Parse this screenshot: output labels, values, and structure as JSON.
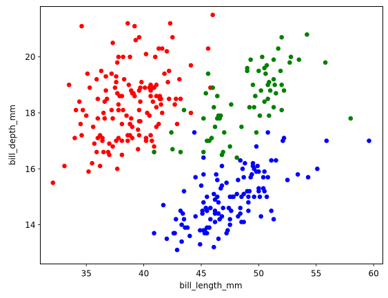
{
  "chart_data": {
    "type": "scatter",
    "title": "",
    "xlabel": "bill_length_mm",
    "ylabel": "bill_depth_mm",
    "xlim": [
      31.0,
      60.8
    ],
    "ylim": [
      12.6,
      21.8
    ],
    "xticks": [
      35,
      40,
      45,
      50,
      55,
      60
    ],
    "yticks": [
      14,
      16,
      18,
      20
    ],
    "grid": false,
    "legend": "none",
    "series": [
      {
        "color": "#ff0000",
        "points": [
          [
            32.1,
            15.5
          ],
          [
            33.1,
            16.1
          ],
          [
            33.5,
            19.0
          ],
          [
            34.0,
            17.1
          ],
          [
            34.1,
            18.1
          ],
          [
            34.4,
            18.4
          ],
          [
            34.5,
            17.6
          ],
          [
            34.6,
            21.1
          ],
          [
            34.6,
            17.2
          ],
          [
            34.7,
            18.1
          ],
          [
            35.0,
            17.9
          ],
          [
            35.1,
            19.4
          ],
          [
            35.2,
            15.9
          ],
          [
            35.3,
            18.9
          ],
          [
            35.5,
            16.2
          ],
          [
            35.6,
            17.5
          ],
          [
            35.7,
            16.9
          ],
          [
            35.9,
            19.2
          ],
          [
            35.9,
            16.6
          ],
          [
            36.0,
            17.1
          ],
          [
            36.0,
            17.8
          ],
          [
            36.0,
            18.5
          ],
          [
            36.2,
            16.1
          ],
          [
            36.2,
            17.2
          ],
          [
            36.3,
            19.5
          ],
          [
            36.4,
            17.1
          ],
          [
            36.4,
            17.0
          ],
          [
            36.5,
            16.6
          ],
          [
            36.5,
            18.0
          ],
          [
            36.6,
            17.8
          ],
          [
            36.6,
            18.4
          ],
          [
            36.7,
            18.8
          ],
          [
            36.7,
            19.3
          ],
          [
            36.8,
            18.5
          ],
          [
            36.9,
            16.6
          ],
          [
            37.0,
            16.9
          ],
          [
            37.0,
            16.5
          ],
          [
            37.2,
            18.1
          ],
          [
            37.2,
            19.4
          ],
          [
            37.3,
            16.8
          ],
          [
            37.3,
            17.8
          ],
          [
            37.3,
            20.5
          ],
          [
            37.5,
            18.9
          ],
          [
            37.6,
            17.0
          ],
          [
            37.6,
            19.1
          ],
          [
            37.6,
            19.3
          ],
          [
            37.7,
            16.0
          ],
          [
            37.7,
            18.7
          ],
          [
            37.7,
            19.8
          ],
          [
            37.8,
            17.1
          ],
          [
            37.8,
            18.1
          ],
          [
            37.8,
            18.3
          ],
          [
            37.8,
            20.0
          ],
          [
            37.9,
            18.6
          ],
          [
            38.1,
            16.5
          ],
          [
            38.1,
            17.0
          ],
          [
            38.1,
            17.6
          ],
          [
            38.1,
            18.6
          ],
          [
            38.2,
            18.1
          ],
          [
            38.2,
            20.0
          ],
          [
            38.3,
            19.2
          ],
          [
            38.5,
            17.9
          ],
          [
            38.6,
            17.0
          ],
          [
            38.6,
            17.2
          ],
          [
            38.6,
            21.2
          ],
          [
            38.7,
            19.0
          ],
          [
            38.8,
            17.2
          ],
          [
            38.8,
            17.6
          ],
          [
            38.8,
            20.0
          ],
          [
            38.9,
            17.8
          ],
          [
            38.9,
            18.8
          ],
          [
            39.0,
            17.1
          ],
          [
            39.0,
            17.5
          ],
          [
            39.0,
            18.7
          ],
          [
            39.1,
            18.7
          ],
          [
            39.2,
            18.6
          ],
          [
            39.2,
            21.1
          ],
          [
            39.3,
            20.6
          ],
          [
            39.5,
            16.7
          ],
          [
            39.5,
            17.4
          ],
          [
            39.6,
            17.2
          ],
          [
            39.6,
            17.7
          ],
          [
            39.6,
            18.1
          ],
          [
            39.6,
            18.8
          ],
          [
            39.6,
            20.7
          ],
          [
            39.7,
            17.7
          ],
          [
            39.7,
            18.4
          ],
          [
            39.7,
            18.9
          ],
          [
            39.8,
            19.1
          ],
          [
            40.1,
            18.9
          ],
          [
            40.2,
            17.0
          ],
          [
            40.2,
            17.1
          ],
          [
            40.2,
            20.1
          ],
          [
            40.3,
            18.0
          ],
          [
            40.5,
            17.9
          ],
          [
            40.5,
            18.9
          ],
          [
            40.6,
            17.2
          ],
          [
            40.6,
            18.6
          ],
          [
            40.6,
            18.8
          ],
          [
            40.6,
            19.0
          ],
          [
            40.7,
            17.0
          ],
          [
            40.8,
            18.4
          ],
          [
            40.8,
            18.9
          ],
          [
            40.9,
            16.6
          ],
          [
            40.9,
            16.8
          ],
          [
            40.9,
            18.9
          ],
          [
            41.0,
            20.0
          ],
          [
            41.1,
            17.5
          ],
          [
            41.1,
            18.2
          ],
          [
            41.1,
            18.6
          ],
          [
            41.1,
            19.0
          ],
          [
            41.3,
            17.6
          ],
          [
            41.3,
            20.3
          ],
          [
            41.4,
            18.5
          ],
          [
            41.4,
            18.6
          ],
          [
            41.5,
            18.3
          ],
          [
            41.5,
            18.5
          ],
          [
            41.6,
            18.0
          ],
          [
            41.6,
            20.3
          ],
          [
            41.8,
            19.4
          ],
          [
            42.0,
            20.2
          ],
          [
            42.1,
            19.1
          ],
          [
            42.2,
            18.5
          ],
          [
            42.2,
            19.5
          ],
          [
            42.3,
            21.2
          ],
          [
            42.5,
            20.7
          ],
          [
            42.7,
            18.3
          ],
          [
            42.8,
            18.5
          ],
          [
            42.9,
            17.6
          ],
          [
            43.1,
            19.2
          ],
          [
            43.2,
            18.5
          ],
          [
            44.1,
            18.0
          ],
          [
            44.1,
            19.7
          ],
          [
            45.6,
            20.3
          ],
          [
            45.8,
            18.9
          ],
          [
            46.0,
            21.5
          ]
        ]
      },
      {
        "color": "#008000",
        "points": [
          [
            40.9,
            16.6
          ],
          [
            42.4,
            17.3
          ],
          [
            42.5,
            16.7
          ],
          [
            43.2,
            16.6
          ],
          [
            43.5,
            18.1
          ],
          [
            45.2,
            16.6
          ],
          [
            45.2,
            17.8
          ],
          [
            45.4,
            18.7
          ],
          [
            45.5,
            17.0
          ],
          [
            45.6,
            19.4
          ],
          [
            45.7,
            17.0
          ],
          [
            45.9,
            17.1
          ],
          [
            46.0,
            18.9
          ],
          [
            46.1,
            18.2
          ],
          [
            46.2,
            17.5
          ],
          [
            46.4,
            18.6
          ],
          [
            46.4,
            17.8
          ],
          [
            46.5,
            17.9
          ],
          [
            46.6,
            17.8
          ],
          [
            46.7,
            17.9
          ],
          [
            46.8,
            16.5
          ],
          [
            46.9,
            16.6
          ],
          [
            47.0,
            17.3
          ],
          [
            47.5,
            16.8
          ],
          [
            47.6,
            18.3
          ],
          [
            48.1,
            16.4
          ],
          [
            48.5,
            17.5
          ],
          [
            49.0,
            19.5
          ],
          [
            49.0,
            19.6
          ],
          [
            49.2,
            18.2
          ],
          [
            49.3,
            19.9
          ],
          [
            49.5,
            19.0
          ],
          [
            49.6,
            18.2
          ],
          [
            49.7,
            18.6
          ],
          [
            49.8,
            17.3
          ],
          [
            50.0,
            19.5
          ],
          [
            50.1,
            17.9
          ],
          [
            50.2,
            18.8
          ],
          [
            50.3,
            20.0
          ],
          [
            50.5,
            18.4
          ],
          [
            50.5,
            19.6
          ],
          [
            50.6,
            19.4
          ],
          [
            50.7,
            19.7
          ],
          [
            50.8,
            18.5
          ],
          [
            50.8,
            19.0
          ],
          [
            50.9,
            17.9
          ],
          [
            50.9,
            19.1
          ],
          [
            51.0,
            18.8
          ],
          [
            51.3,
            18.2
          ],
          [
            51.3,
            19.2
          ],
          [
            51.3,
            19.9
          ],
          [
            51.4,
            19.0
          ],
          [
            51.5,
            18.7
          ],
          [
            51.7,
            20.3
          ],
          [
            51.9,
            19.5
          ],
          [
            52.0,
            18.1
          ],
          [
            52.0,
            19.0
          ],
          [
            52.0,
            20.7
          ],
          [
            52.2,
            18.8
          ],
          [
            52.7,
            19.8
          ],
          [
            52.8,
            20.0
          ],
          [
            53.5,
            19.9
          ],
          [
            54.2,
            20.8
          ],
          [
            55.8,
            19.8
          ],
          [
            58.0,
            17.8
          ]
        ]
      },
      {
        "color": "#0000ff",
        "points": [
          [
            40.9,
            13.7
          ],
          [
            41.7,
            14.7
          ],
          [
            42.0,
            13.5
          ],
          [
            42.6,
            13.7
          ],
          [
            42.7,
            13.7
          ],
          [
            42.8,
            14.2
          ],
          [
            42.9,
            13.1
          ],
          [
            43.2,
            14.5
          ],
          [
            43.3,
            13.4
          ],
          [
            43.3,
            14.0
          ],
          [
            43.4,
            14.4
          ],
          [
            43.5,
            14.2
          ],
          [
            43.5,
            15.2
          ],
          [
            43.6,
            13.9
          ],
          [
            43.8,
            13.9
          ],
          [
            44.0,
            13.6
          ],
          [
            44.4,
            17.3
          ],
          [
            44.5,
            14.3
          ],
          [
            44.5,
            15.7
          ],
          [
            44.9,
            13.3
          ],
          [
            44.9,
            13.8
          ],
          [
            45.0,
            15.4
          ],
          [
            45.1,
            14.4
          ],
          [
            45.1,
            14.5
          ],
          [
            45.2,
            13.8
          ],
          [
            45.2,
            14.8
          ],
          [
            45.2,
            15.8
          ],
          [
            45.2,
            16.4
          ],
          [
            45.3,
            13.7
          ],
          [
            45.3,
            13.8
          ],
          [
            45.4,
            14.6
          ],
          [
            45.5,
            13.7
          ],
          [
            45.5,
            13.9
          ],
          [
            45.5,
            14.5
          ],
          [
            45.5,
            15.0
          ],
          [
            45.7,
            13.9
          ],
          [
            45.8,
            14.2
          ],
          [
            45.8,
            14.6
          ],
          [
            46.1,
            13.2
          ],
          [
            46.1,
            15.1
          ],
          [
            46.2,
            14.1
          ],
          [
            46.2,
            14.4
          ],
          [
            46.2,
            14.5
          ],
          [
            46.2,
            14.9
          ],
          [
            46.3,
            15.8
          ],
          [
            46.4,
            15.0
          ],
          [
            46.4,
            15.6
          ],
          [
            46.5,
            13.5
          ],
          [
            46.5,
            14.4
          ],
          [
            46.5,
            14.8
          ],
          [
            46.6,
            14.2
          ],
          [
            46.7,
            15.3
          ],
          [
            46.8,
            14.3
          ],
          [
            46.8,
            15.4
          ],
          [
            46.8,
            16.1
          ],
          [
            46.9,
            14.6
          ],
          [
            47.2,
            13.7
          ],
          [
            47.2,
            15.5
          ],
          [
            47.3,
            13.8
          ],
          [
            47.4,
            14.6
          ],
          [
            47.5,
            14.0
          ],
          [
            47.5,
            14.2
          ],
          [
            47.5,
            15.0
          ],
          [
            47.6,
            14.5
          ],
          [
            47.7,
            15.0
          ],
          [
            47.8,
            15.0
          ],
          [
            48.1,
            15.1
          ],
          [
            48.2,
            14.3
          ],
          [
            48.2,
            15.6
          ],
          [
            48.4,
            14.4
          ],
          [
            48.4,
            14.6
          ],
          [
            48.4,
            16.3
          ],
          [
            48.5,
            14.1
          ],
          [
            48.5,
            15.0
          ],
          [
            48.6,
            16.0
          ],
          [
            48.7,
            14.1
          ],
          [
            48.7,
            15.1
          ],
          [
            48.7,
            15.7
          ],
          [
            48.8,
            16.2
          ],
          [
            49.0,
            15.2
          ],
          [
            49.1,
            14.5
          ],
          [
            49.1,
            14.8
          ],
          [
            49.1,
            15.0
          ],
          [
            49.2,
            15.2
          ],
          [
            49.3,
            15.7
          ],
          [
            49.4,
            15.8
          ],
          [
            49.5,
            16.1
          ],
          [
            49.5,
            16.2
          ],
          [
            49.6,
            15.0
          ],
          [
            49.6,
            16.0
          ],
          [
            49.8,
            15.9
          ],
          [
            49.8,
            16.8
          ],
          [
            49.9,
            16.1
          ],
          [
            50.0,
            15.2
          ],
          [
            50.0,
            15.3
          ],
          [
            50.0,
            15.9
          ],
          [
            50.1,
            15.0
          ],
          [
            50.2,
            14.3
          ],
          [
            50.4,
            15.3
          ],
          [
            50.4,
            15.7
          ],
          [
            50.5,
            15.2
          ],
          [
            50.5,
            15.9
          ],
          [
            50.7,
            15.0
          ],
          [
            50.8,
            15.7
          ],
          [
            50.8,
            17.3
          ],
          [
            51.1,
            14.5
          ],
          [
            51.1,
            16.3
          ],
          [
            51.3,
            14.2
          ],
          [
            51.5,
            16.3
          ],
          [
            52.1,
            17.0
          ],
          [
            52.2,
            17.1
          ],
          [
            52.5,
            15.6
          ],
          [
            53.4,
            15.8
          ],
          [
            54.3,
            15.7
          ],
          [
            55.1,
            16.0
          ],
          [
            55.9,
            17.0
          ],
          [
            59.6,
            17.0
          ]
        ]
      }
    ]
  }
}
